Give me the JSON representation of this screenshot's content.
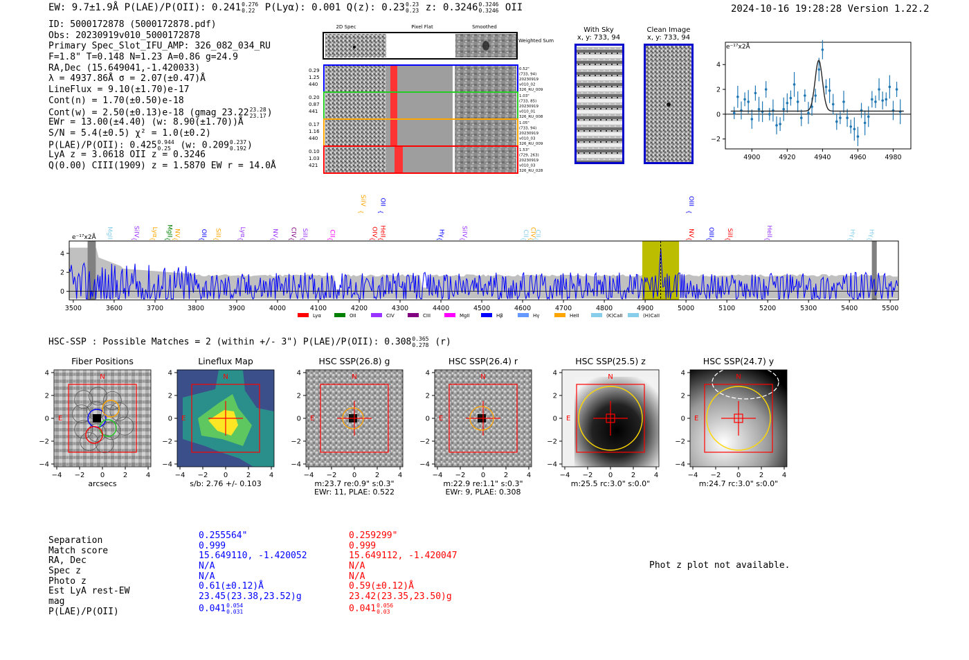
{
  "header": {
    "left": "EW: 9.7±1.9Å  P(LAE)/P(OII): 0.241",
    "left_hi": "0.276",
    "left_lo": "0.22",
    "plya": "P(Lyα): 0.001  Q(z): 0.23",
    "qz_hi": "0.23",
    "qz_lo": "0.23",
    "z": "z: 0.3246",
    "z_hi": "0.3246",
    "z_lo": "0.3246",
    "z_tag": "OII",
    "right": "2024-10-16 19:28:28  Version 1.22.2"
  },
  "info": {
    "id": "ID: 5000172878 (5000172878.pdf)",
    "obs": "Obs: 20230919v010_5000172878",
    "primary": "Primary Spec_Slot_IFU_AMP: 326_082_034_RU",
    "fwhm": "F=1.8\"  T=0.148  N=1.23  A=0.86  g=24.9",
    "radec": "RA,Dec (15.649041,-1.420033)",
    "lambda": "λ = 4937.86Å  σ = 2.07(±0.47)Å",
    "lineflux": "LineFlux = 9.10(±1.70)e-17",
    "contn": "Cont(n) = 1.70(±0.50)e-18",
    "contw": "Cont(w) = 2.50(±0.13)e-18 (gmag 23.22",
    "contw_hi": "23.28",
    "contw_lo": "23.17",
    "contw_end": ")",
    "ewr": "EWr = 13.00(±4.40) (w: 8.90(±1.70))Å",
    "sn": "S/N = 5.4(±0.5)  χ² = 1.0(±0.2)",
    "plae": "P(LAE)/P(OII): 0.425",
    "plae_hi": "0.944",
    "plae_lo": "0.25",
    "plae_w": "(w: 0.209",
    "plae_w_hi": "0.237",
    "plae_w_lo": "0.192",
    "plae_w_end": ")",
    "lya": "LyA z = 3.0618  OII z = 0.3246",
    "q": "Q(0.00) CIII(1909) z = 1.5870  EW r = 14.0Å"
  },
  "stamps": {
    "col_titles": [
      "2D Spec",
      "Pixel Flat",
      "Smoothed"
    ],
    "weighted_sum": "Weighted Sum",
    "rows": [
      {
        "left": [
          "0.29",
          "1.25",
          "440"
        ],
        "right": [
          "0.52\"",
          "(733, 94)",
          "20230919",
          "v010_02",
          "326_RU_009"
        ],
        "color": "#0000ff"
      },
      {
        "left": [
          "0.20",
          "0.87",
          "441"
        ],
        "right": [
          "1.03\"",
          "(733, 85)",
          "20230919",
          "v010_01",
          "326_RU_008"
        ],
        "color": "#22cc22"
      },
      {
        "left": [
          "0.17",
          "1.16",
          "440"
        ],
        "right": [
          "1.05\"",
          "(733, 94)",
          "20230919",
          "v010_03",
          "326_RU_009"
        ],
        "color": "#ffa500"
      },
      {
        "left": [
          "0.10",
          "1.03",
          "421"
        ],
        "right": [
          "1.53\"",
          "(729, 263)",
          "20230919",
          "v010_03",
          "326_RU_028"
        ],
        "color": "#ff0000"
      }
    ]
  },
  "with_sky": {
    "title": "With Sky",
    "coords": "x, y: 733, 94"
  },
  "clean": {
    "title": "Clean Image",
    "coords": "x, y: 733, 94"
  },
  "line_fit": {
    "ylabel": "e⁻¹⁷x2Å"
  },
  "spectrum": {
    "ylabel": "e⁻¹⁷x2Å"
  },
  "hsc": {
    "line": "HSC-SSP : Possible Matches = 2 (within +/- 3\")  P(LAE)/P(OII): 0.308",
    "hi": "0.365",
    "lo": "0.278",
    "band": "(r)"
  },
  "panels": [
    {
      "title": "Fiber Positions",
      "cap1": "arcsecs",
      "cap2": ""
    },
    {
      "title": "Lineflux Map",
      "cap1": "s/b: 2.76 +/- 0.103",
      "cap2": ""
    },
    {
      "title": "HSC SSP(26.8) g",
      "cap1": "m:23.7  re:0.9\"  s:0.3\"",
      "cap2": "EWr: 11, PLAE: 0.522"
    },
    {
      "title": "HSC SSP(26.4) r",
      "cap1": "m:22.9  re:1.1\"  s:0.3\"",
      "cap2": "EWr: 9, PLAE: 0.308"
    },
    {
      "title": "HSC SSP(25.5) z",
      "cap1": "m:25.5 rc:3.0\"  s:0.0\"",
      "cap2": ""
    },
    {
      "title": "HSC SSP(24.7) y",
      "cap1": "m:24.7 rc:3.0\"  s:0.0\"",
      "cap2": ""
    }
  ],
  "matches": {
    "labels": [
      "Separation",
      "Match score",
      "RA, Dec",
      "Spec z",
      "Photo z",
      "Est LyA rest-EW",
      "mag",
      "P(LAE)/P(OII)"
    ],
    "blue": [
      "0.255564\"",
      "0.999",
      "15.649110, -1.420052",
      "N/A",
      "N/A",
      "0.61(±0.12)Å",
      "23.45(23.38,23.52)g",
      "0.041"
    ],
    "blue_hi": "0.054",
    "blue_lo": "0.031",
    "red": [
      "0.259299\"",
      "0.999",
      "15.649112, -1.420047",
      "N/A",
      "N/A",
      "0.59(±0.12)Å",
      "23.42(23.35,23.50)g",
      "0.041"
    ],
    "red_hi": "0.056",
    "red_lo": "0.03",
    "photz": "Phot z plot not available."
  },
  "chart_data": [
    {
      "type": "line",
      "title": "",
      "xlabel": "",
      "ylabel": "e⁻¹⁷x2Å",
      "xlim": [
        4885,
        4990
      ],
      "ylim": [
        -2.8,
        5.8
      ],
      "x_ticks": [
        4900,
        4920,
        4940,
        4960,
        4980
      ],
      "y_ticks": [
        -2,
        0,
        2,
        4
      ],
      "points_x": [
        4890,
        4892,
        4894,
        4896,
        4898,
        4900,
        4902,
        4904,
        4906,
        4908,
        4910,
        4912,
        4914,
        4916,
        4918,
        4920,
        4922,
        4924,
        4926,
        4928,
        4930,
        4932,
        4934,
        4936,
        4938,
        4940,
        4942,
        4944,
        4946,
        4948,
        4950,
        4952,
        4954,
        4956,
        4958,
        4960,
        4962,
        4964,
        4966,
        4968,
        4970,
        4972,
        4974,
        4976,
        4978,
        4980,
        4982,
        4984
      ],
      "points_y": [
        0.1,
        1.4,
        0.3,
        1.2,
        1.0,
        -0.4,
        1.7,
        0.4,
        0.2,
        2.0,
        0.0,
        0.3,
        -0.9,
        -0.8,
        0.4,
        0.9,
        1.3,
        2.4,
        1.0,
        -0.3,
        1.5,
        0.1,
        0.6,
        1.5,
        3.6,
        5.2,
        2.2,
        1.9,
        0.8,
        -0.6,
        -0.3,
        1.0,
        -0.3,
        -1.0,
        -1.2,
        -1.8,
        0.3,
        -0.7,
        -0.2,
        1.2,
        1.0,
        2.0,
        1.1,
        1.2,
        2.2,
        0.3,
        2.0,
        0.2
      ],
      "fit": "gaussian",
      "fit_center": 4937.86,
      "fit_amp": 4.1,
      "fit_sigma": 2.07,
      "fit_cont": 0.25
    },
    {
      "type": "line",
      "xlabel": "",
      "ylabel": "e⁻¹⁷x2Å",
      "xlim": [
        3490,
        5520
      ],
      "ylim": [
        -0.9,
        5.3
      ],
      "x_ticks": [
        3500,
        3600,
        3700,
        3800,
        3900,
        4000,
        4100,
        4200,
        4300,
        4400,
        4500,
        4600,
        4700,
        4800,
        4900,
        5000,
        5100,
        5200,
        5300,
        5400,
        5500
      ],
      "y_ticks": [
        0,
        2,
        4
      ],
      "highlight_band": [
        4893,
        4983
      ],
      "marked_line": 4938,
      "legend": [
        {
          "label": "Lyα",
          "color": "#ff0000"
        },
        {
          "label": "OII",
          "color": "#008000"
        },
        {
          "label": "CIV",
          "color": "#9933ff"
        },
        {
          "label": "CIII",
          "color": "#800080"
        },
        {
          "label": "MgII",
          "color": "#ff00ff"
        },
        {
          "label": "Hβ",
          "color": "#0000ff"
        },
        {
          "label": "Hγ",
          "color": "#6699ff"
        },
        {
          "label": "HeII",
          "color": "#ffa500"
        },
        {
          "label": "(K)CaII",
          "color": "#87ceeb"
        },
        {
          "label": "(H)CaII",
          "color": "#87ceeb"
        }
      ],
      "line_markers": [
        {
          "label": "MgII",
          "wave": 3580,
          "color": "#87ceeb",
          "row": 2
        },
        {
          "label": "SiIV",
          "wave": 3645,
          "color": "#9933ff",
          "row": 1
        },
        {
          "label": "Lyα",
          "wave": 3690,
          "color": "#ffa500",
          "row": 1
        },
        {
          "label": "MgII",
          "wave": 3726,
          "color": "#008000",
          "row": 1
        },
        {
          "label": "NV",
          "wave": 3745,
          "color": "#ffa500",
          "row": 1
        },
        {
          "label": "OII",
          "wave": 3810,
          "color": "#0000ff",
          "row": 1
        },
        {
          "label": "SiII",
          "wave": 3845,
          "color": "#ffa500",
          "row": 1
        },
        {
          "label": "Lyα",
          "wave": 3905,
          "color": "#9933ff",
          "row": 1
        },
        {
          "label": "NV",
          "wave": 3985,
          "color": "#9933ff",
          "row": 1
        },
        {
          "label": "CIV",
          "wave": 4030,
          "color": "#800080",
          "row": 1
        },
        {
          "label": "SiII",
          "wave": 4058,
          "color": "#9933ff",
          "row": 1
        },
        {
          "label": "CII",
          "wave": 4125,
          "color": "#ff00ff",
          "row": 1
        },
        {
          "label": "SiIV",
          "wave": 4200,
          "color": "#ffa500",
          "row": 0
        },
        {
          "label": "OIV",
          "wave": 4228,
          "color": "#ff0000",
          "row": 1
        },
        {
          "label": "OII",
          "wave": 4248,
          "color": "#0000ff",
          "row": 0
        },
        {
          "label": "HeII",
          "wave": 4248,
          "color": "#ff0000",
          "row": 1
        },
        {
          "label": "Hγ",
          "wave": 4392,
          "color": "#0000ff",
          "row": 1
        },
        {
          "label": "SiIV",
          "wave": 4448,
          "color": "#9933ff",
          "row": 1
        },
        {
          "label": "CII",
          "wave": 4598,
          "color": "#87ceeb",
          "row": 1
        },
        {
          "label": "CIV",
          "wave": 4616,
          "color": "#ffa500",
          "row": 1
        },
        {
          "label": "CII",
          "wave": 4628,
          "color": "#87ceeb",
          "row": 1
        },
        {
          "label": "OIII",
          "wave": 5003,
          "color": "#0000ff",
          "row": 0
        },
        {
          "label": "NV",
          "wave": 5003,
          "color": "#ff0000",
          "row": 1
        },
        {
          "label": "OIII",
          "wave": 5052,
          "color": "#0000ff",
          "row": 1
        },
        {
          "label": "SiII",
          "wave": 5098,
          "color": "#ff0000",
          "row": 1
        },
        {
          "label": "HeII",
          "wave": 5195,
          "color": "#9933ff",
          "row": 1
        },
        {
          "label": "Hγ",
          "wave": 5398,
          "color": "#87ceeb",
          "row": 1
        },
        {
          "label": "Hγ",
          "wave": 5445,
          "color": "#87ceeb",
          "row": 1
        }
      ]
    }
  ]
}
